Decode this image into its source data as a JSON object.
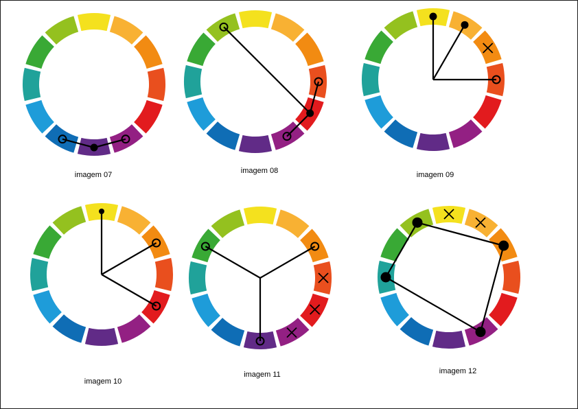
{
  "palette": [
    "#F4E11E",
    "#F8B133",
    "#F28B12",
    "#E94F1E",
    "#E21B1E",
    "#A51C80",
    "#932083",
    "#612B87",
    "#1B6CB3",
    "#1F9AD8",
    "#1F9E97",
    "#3AAA39",
    "#93C12D"
  ],
  "wheel_colors": [
    "#F4E11E",
    "#F8B133",
    "#F28B12",
    "#E94F1E",
    "#E21B1E",
    "#932083",
    "#612B87",
    "#0F6DB5",
    "#1E9CD9",
    "#20A29A",
    "#39A935",
    "#94C11F"
  ],
  "wheels": [
    {
      "caption": "imagem 07",
      "connection": "polyline",
      "markers": [
        {
          "segment": 7,
          "style": "open"
        },
        {
          "segment": 6,
          "style": "dot"
        },
        {
          "segment": 5,
          "style": "open"
        }
      ],
      "excluded": []
    },
    {
      "caption": "imagem 08",
      "connection": "polyline",
      "markers": [
        {
          "segment": 11,
          "style": "open"
        },
        {
          "segment": 4,
          "style": "dot"
        },
        {
          "segment": 3,
          "style": "open"
        }
      ],
      "extra_lines": [
        [
          4,
          5
        ]
      ],
      "extra_markers": [
        {
          "segment": 5,
          "style": "open"
        }
      ],
      "excluded": []
    },
    {
      "caption": "imagem 09",
      "connection": "radial",
      "markers": [
        {
          "segment": 0,
          "style": "dot"
        },
        {
          "segment": 1,
          "style": "dot"
        },
        {
          "segment": 3,
          "style": "open"
        }
      ],
      "excluded": [
        2
      ]
    },
    {
      "caption": "imagem 10",
      "connection": "radial",
      "markers": [
        {
          "segment": 0,
          "style": "small-dot"
        },
        {
          "segment": 2,
          "style": "open"
        },
        {
          "segment": 4,
          "style": "open"
        }
      ],
      "excluded": []
    },
    {
      "caption": "imagem 11",
      "connection": "radial",
      "markers": [
        {
          "segment": 10,
          "style": "open"
        },
        {
          "segment": 2,
          "style": "open"
        },
        {
          "segment": 6,
          "style": "open"
        }
      ],
      "excluded": [
        3,
        4,
        5
      ]
    },
    {
      "caption": "imagem 12",
      "connection": "polygon",
      "markers": [
        {
          "segment": 11,
          "style": "big-dot"
        },
        {
          "segment": 2,
          "style": "big-dot"
        },
        {
          "segment": 5,
          "style": "big-dot"
        },
        {
          "segment": 9,
          "style": "big-dot"
        }
      ],
      "excluded": [
        0,
        1
      ]
    }
  ]
}
